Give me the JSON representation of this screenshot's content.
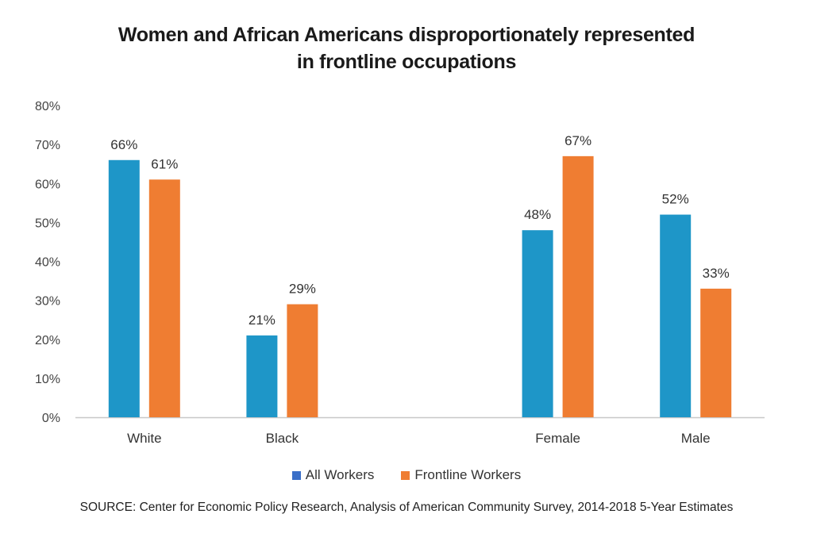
{
  "chart_data": {
    "type": "bar",
    "title_line1": "Women and African Americans disproportionately represented",
    "title_line2": "in frontline occupations",
    "categories": [
      "White",
      "Black",
      "Female",
      "Male"
    ],
    "series": [
      {
        "name": "All Workers",
        "color": "#1e96c8",
        "values": [
          66,
          21,
          48,
          52
        ],
        "labels": [
          "66%",
          "21%",
          "48%",
          "52%"
        ]
      },
      {
        "name": "Frontline Workers",
        "color": "#ef7d32",
        "values": [
          61,
          29,
          67,
          33
        ],
        "labels": [
          "61%",
          "29%",
          "67%",
          "33%"
        ]
      }
    ],
    "ylim": [
      0,
      80
    ],
    "yticks": [
      "0%",
      "10%",
      "20%",
      "30%",
      "40%",
      "50%",
      "60%",
      "70%",
      "80%"
    ],
    "grid": false,
    "legend_position": "bottom",
    "legend_marker_color_all_workers": "#3a6fc8"
  },
  "source": "SOURCE: Center for Economic Policy Research, Analysis of American Community Survey, 2014-2018 5-Year Estimates"
}
